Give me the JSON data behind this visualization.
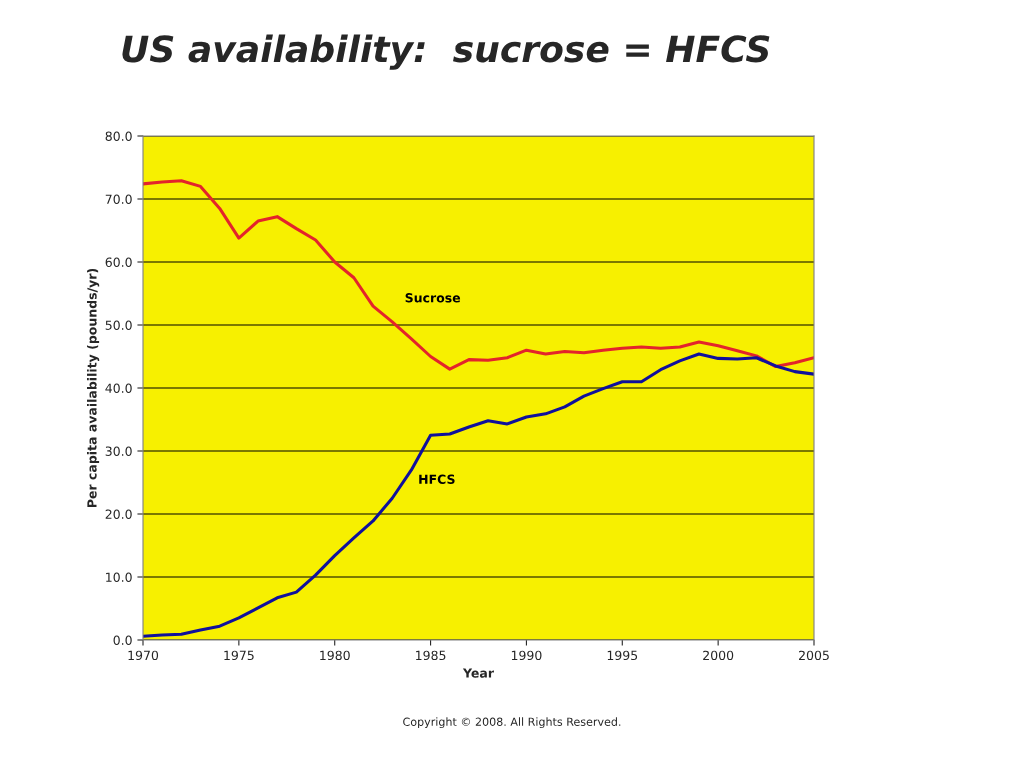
{
  "chart_data": {
    "type": "line",
    "title": "US availability:  sucrose = HFCS",
    "xlabel": "Year",
    "ylabel": "Per capita availability (pounds/yr)",
    "x": [
      1970,
      1971,
      1972,
      1973,
      1974,
      1975,
      1976,
      1977,
      1978,
      1979,
      1980,
      1981,
      1982,
      1983,
      1984,
      1985,
      1986,
      1987,
      1988,
      1989,
      1990,
      1991,
      1992,
      1993,
      1994,
      1995,
      1996,
      1997,
      1998,
      1999,
      2000,
      2001,
      2002,
      2003,
      2004,
      2005
    ],
    "series": [
      {
        "name": "Sucrose",
        "color": "#e3242b",
        "values": [
          72.4,
          72.7,
          72.9,
          72.0,
          68.5,
          63.8,
          66.5,
          67.2,
          65.3,
          63.5,
          60.0,
          57.5,
          53.0,
          50.5,
          47.8,
          45.0,
          43.0,
          44.5,
          44.4,
          44.8,
          46.0,
          45.4,
          45.8,
          45.6,
          46.0,
          46.3,
          46.5,
          46.3,
          46.5,
          47.3,
          46.7,
          45.9,
          45.1,
          43.4,
          44.0,
          44.8
        ]
      },
      {
        "name": "HFCS",
        "color": "#10109c",
        "values": [
          0.6,
          0.8,
          0.9,
          1.6,
          2.2,
          3.5,
          5.1,
          6.7,
          7.6,
          10.3,
          13.4,
          16.2,
          18.9,
          22.5,
          27.0,
          32.5,
          32.7,
          33.8,
          34.8,
          34.3,
          35.4,
          35.9,
          37.0,
          38.7,
          39.9,
          41.0,
          41.0,
          42.9,
          44.3,
          45.4,
          44.7,
          44.6,
          44.8,
          43.5,
          42.6,
          42.2
        ]
      }
    ],
    "xlim": [
      1970,
      2005
    ],
    "xticks": [
      1970,
      1975,
      1980,
      1985,
      1990,
      1995,
      2000,
      2005
    ],
    "ylim": [
      0,
      80
    ],
    "yticks": [
      {
        "value": 0,
        "label": "0.0"
      },
      {
        "value": 10,
        "label": "10.0"
      },
      {
        "value": 20,
        "label": "20.0"
      },
      {
        "value": 30,
        "label": "30.0"
      },
      {
        "value": 40,
        "label": "40.0"
      },
      {
        "value": 50,
        "label": "50.0"
      },
      {
        "value": 60,
        "label": "60.0"
      },
      {
        "value": 70,
        "label": "70.0"
      },
      {
        "value": 80,
        "label": "80.0"
      }
    ],
    "grid": "y",
    "marker": "none",
    "line_style": "solid",
    "annotations": [
      "Copyright © 2008. All Rights Reserved."
    ]
  }
}
